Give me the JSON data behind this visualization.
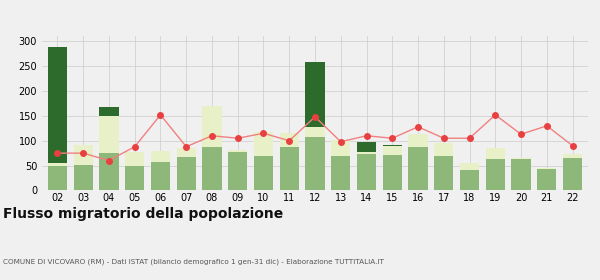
{
  "years": [
    "02",
    "03",
    "04",
    "05",
    "06",
    "07",
    "08",
    "09",
    "10",
    "11",
    "12",
    "13",
    "14",
    "15",
    "16",
    "17",
    "18",
    "19",
    "20",
    "21",
    "22"
  ],
  "iscritti_altri_comuni": [
    50,
    52,
    75,
    50,
    58,
    68,
    88,
    78,
    70,
    88,
    108,
    70,
    73,
    72,
    88,
    70,
    42,
    63,
    63,
    43,
    65
  ],
  "iscritti_estero": [
    5,
    40,
    75,
    28,
    22,
    17,
    82,
    3,
    48,
    28,
    20,
    32,
    5,
    18,
    25,
    25,
    13,
    22,
    3,
    3,
    8
  ],
  "iscritti_altri": [
    233,
    0,
    18,
    0,
    0,
    0,
    0,
    0,
    0,
    0,
    130,
    0,
    20,
    2,
    0,
    0,
    0,
    0,
    0,
    0,
    0
  ],
  "cancellati": [
    75,
    75,
    60,
    88,
    152,
    88,
    110,
    105,
    115,
    100,
    148,
    98,
    110,
    105,
    128,
    105,
    105,
    152,
    113,
    130,
    90
  ],
  "color_altri_comuni": "#8db87a",
  "color_estero": "#e8f0c8",
  "color_altri": "#2d6b2d",
  "color_cancellati": "#e84040",
  "color_cancellati_line": "#f08080",
  "title": "Flusso migratorio della popolazione",
  "subtitle": "COMUNE DI VICOVARO (RM) - Dati ISTAT (bilancio demografico 1 gen-31 dic) - Elaborazione TUTTITALIA.IT",
  "ylim": [
    0,
    310
  ],
  "yticks": [
    0,
    50,
    100,
    150,
    200,
    250,
    300
  ],
  "background": "#f0f0f0"
}
